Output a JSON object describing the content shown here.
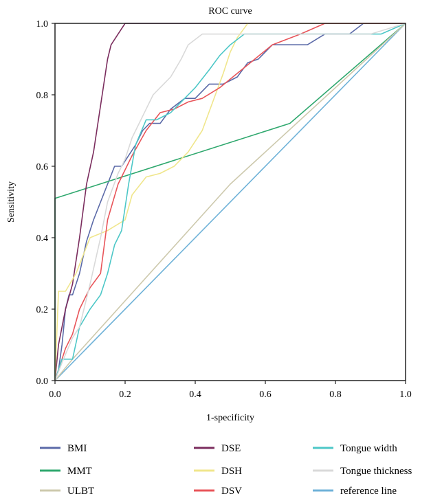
{
  "chart_data": {
    "type": "line",
    "title": "ROC curve",
    "xlabel": "1-specificity",
    "ylabel": "Sensitivity",
    "xlim": [
      0,
      1
    ],
    "ylim": [
      0,
      1
    ],
    "xticks": [
      "0.0",
      "0.2",
      "0.4",
      "0.6",
      "0.8",
      "1.0"
    ],
    "yticks": [
      "0.0",
      "0.2",
      "0.4",
      "0.6",
      "0.8",
      "1.0"
    ],
    "grid": false,
    "legend_position": "bottom",
    "series": [
      {
        "name": "BMI",
        "color": "#5b6aa8",
        "x": [
          0,
          0.01,
          0.02,
          0.03,
          0.04,
          0.05,
          0.07,
          0.09,
          0.11,
          0.13,
          0.15,
          0.17,
          0.19,
          0.21,
          0.23,
          0.25,
          0.27,
          0.3,
          0.33,
          0.37,
          0.4,
          0.44,
          0.48,
          0.52,
          0.55,
          0.58,
          0.62,
          0.72,
          0.77,
          0.84,
          0.88,
          1.0
        ],
        "y": [
          0,
          0.03,
          0.1,
          0.2,
          0.24,
          0.24,
          0.3,
          0.39,
          0.45,
          0.5,
          0.55,
          0.6,
          0.6,
          0.63,
          0.66,
          0.7,
          0.72,
          0.72,
          0.76,
          0.79,
          0.79,
          0.83,
          0.83,
          0.85,
          0.89,
          0.9,
          0.94,
          0.94,
          0.97,
          0.97,
          1.0,
          1.0
        ]
      },
      {
        "name": "MMT",
        "color": "#2fa86e",
        "x": [
          0,
          0,
          0.67,
          1.0
        ],
        "y": [
          0,
          0.51,
          0.72,
          1.0
        ]
      },
      {
        "name": "ULBT",
        "color": "#cdc9ad",
        "x": [
          0,
          0.05,
          0.5,
          1.0
        ],
        "y": [
          0,
          0.06,
          0.55,
          1.0
        ]
      },
      {
        "name": "DSE",
        "color": "#7b2d5e",
        "x": [
          0,
          0.01,
          0.03,
          0.05,
          0.07,
          0.09,
          0.11,
          0.13,
          0.15,
          0.16,
          0.18,
          0.2,
          0.22,
          0.25,
          1.0
        ],
        "y": [
          0,
          0.1,
          0.2,
          0.27,
          0.4,
          0.55,
          0.64,
          0.77,
          0.9,
          0.94,
          0.97,
          1.0,
          1.0,
          1.0,
          1.0
        ]
      },
      {
        "name": "DSH",
        "color": "#f0e68c",
        "x": [
          0,
          0.01,
          0.03,
          0.06,
          0.1,
          0.15,
          0.2,
          0.22,
          0.26,
          0.3,
          0.34,
          0.38,
          0.42,
          0.45,
          0.48,
          0.5,
          0.52,
          0.55,
          0.6,
          1.0
        ],
        "y": [
          0,
          0.25,
          0.25,
          0.3,
          0.4,
          0.42,
          0.45,
          0.52,
          0.57,
          0.58,
          0.6,
          0.64,
          0.7,
          0.78,
          0.86,
          0.92,
          0.96,
          1.0,
          1.0,
          1.0
        ]
      },
      {
        "name": "DSV",
        "color": "#e8555a",
        "x": [
          0,
          0.03,
          0.05,
          0.07,
          0.1,
          0.13,
          0.15,
          0.18,
          0.22,
          0.26,
          0.3,
          0.34,
          0.38,
          0.42,
          0.47,
          0.52,
          0.57,
          0.62,
          0.7,
          0.77,
          1.0
        ],
        "y": [
          0,
          0.09,
          0.13,
          0.2,
          0.26,
          0.3,
          0.45,
          0.55,
          0.63,
          0.7,
          0.75,
          0.76,
          0.78,
          0.79,
          0.82,
          0.86,
          0.9,
          0.94,
          0.97,
          1.0,
          1.0
        ]
      },
      {
        "name": "Tongue width",
        "color": "#4dc7c7",
        "x": [
          0,
          0.02,
          0.05,
          0.07,
          0.1,
          0.13,
          0.15,
          0.17,
          0.19,
          0.21,
          0.23,
          0.26,
          0.29,
          0.33,
          0.36,
          0.4,
          0.44,
          0.47,
          0.5,
          0.54,
          0.58,
          0.65,
          0.75,
          0.87,
          0.93,
          1.0
        ],
        "y": [
          0,
          0.06,
          0.06,
          0.15,
          0.2,
          0.24,
          0.3,
          0.38,
          0.42,
          0.55,
          0.66,
          0.73,
          0.73,
          0.75,
          0.78,
          0.82,
          0.87,
          0.91,
          0.94,
          0.97,
          0.97,
          0.97,
          0.97,
          0.97,
          0.97,
          1.0
        ]
      },
      {
        "name": "Tongue thickness",
        "color": "#d9d9d9",
        "x": [
          0,
          0.02,
          0.05,
          0.07,
          0.1,
          0.13,
          0.15,
          0.18,
          0.2,
          0.22,
          0.24,
          0.26,
          0.28,
          0.3,
          0.33,
          0.36,
          0.38,
          0.42,
          0.5,
          0.6,
          0.7,
          0.8,
          0.9,
          1.0
        ],
        "y": [
          0,
          0.05,
          0.12,
          0.15,
          0.27,
          0.4,
          0.5,
          0.58,
          0.62,
          0.68,
          0.72,
          0.76,
          0.8,
          0.82,
          0.85,
          0.9,
          0.94,
          0.97,
          0.97,
          0.97,
          0.97,
          0.97,
          0.97,
          1.0
        ]
      },
      {
        "name": "reference line",
        "color": "#6fb2d8",
        "x": [
          0,
          1.0
        ],
        "y": [
          0,
          1.0
        ]
      }
    ]
  }
}
